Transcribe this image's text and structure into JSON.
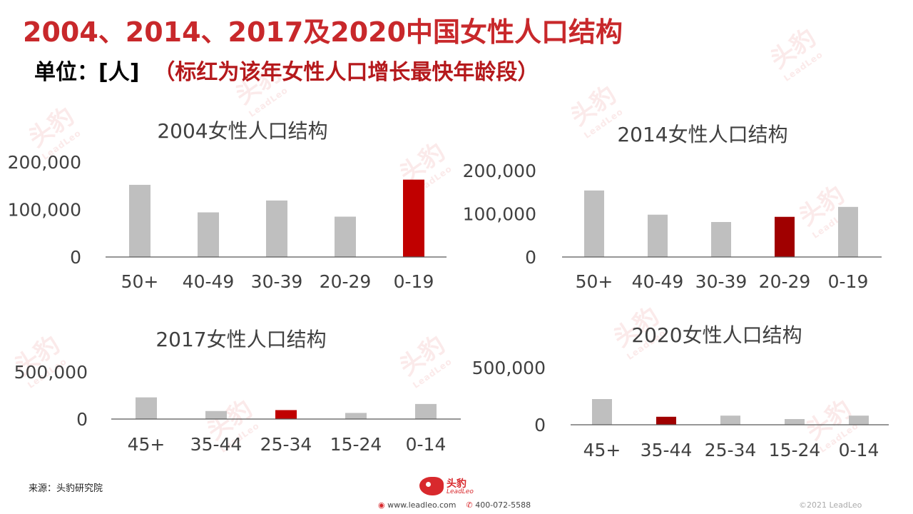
{
  "title": "2004、2014、2017及2020中国女性人口结构",
  "subtitle_unit": "单位：[人]",
  "subtitle_note": "（标红为该年女性人口增长最快年龄段）",
  "source": "来源：头豹研究院",
  "footer": {
    "logo_cn": "头豹",
    "logo_en": "LeadLeo",
    "website": "www.leadleo.com",
    "phone": "400-072-5588",
    "copyright": "©2021 LeadLeo"
  },
  "colors": {
    "gray_bar": "#bfbfbf",
    "highlight_bright": "#c00000",
    "highlight_dark": "#a00000",
    "title_red": "#c8282b"
  },
  "chart_data": [
    {
      "type": "bar",
      "title": "2004女性人口结构",
      "categories": [
        "50+",
        "40-49",
        "30-39",
        "20-29",
        "0-19"
      ],
      "values": [
        152000,
        94000,
        119000,
        85000,
        163000
      ],
      "highlight_index": 4,
      "highlight_color": "#c00000",
      "yticks": [
        0,
        100000,
        200000
      ],
      "ytick_labels": [
        "0",
        "100,000",
        "200,000"
      ],
      "ylim": [
        0,
        200000
      ]
    },
    {
      "type": "bar",
      "title": "2014女性人口结构",
      "categories": [
        "50+",
        "40-49",
        "30-39",
        "20-29",
        "0-19"
      ],
      "values": [
        154000,
        98000,
        81000,
        93000,
        116000
      ],
      "highlight_index": 3,
      "highlight_color": "#a00000",
      "yticks": [
        0,
        100000,
        200000
      ],
      "ytick_labels": [
        "0",
        "100,000",
        "200,000"
      ],
      "ylim": [
        0,
        200000
      ]
    },
    {
      "type": "bar",
      "title": "2017女性人口结构",
      "categories": [
        "45+",
        "35-44",
        "25-34",
        "15-24",
        "0-14"
      ],
      "values": [
        230000,
        85000,
        95000,
        65000,
        160000
      ],
      "highlight_index": 2,
      "highlight_color": "#c00000",
      "yticks": [
        0,
        500000
      ],
      "ytick_labels": [
        "0",
        "500,000"
      ],
      "ylim": [
        0,
        500000
      ]
    },
    {
      "type": "bar",
      "title": "2020女性人口结构",
      "categories": [
        "45+",
        "35-44",
        "25-34",
        "15-24",
        "0-14"
      ],
      "values": [
        225000,
        70000,
        80000,
        50000,
        80000
      ],
      "highlight_index": 1,
      "highlight_color": "#a00000",
      "yticks": [
        0,
        500000
      ],
      "ytick_labels": [
        "0",
        "500,000"
      ],
      "ylim": [
        0,
        500000
      ]
    }
  ]
}
